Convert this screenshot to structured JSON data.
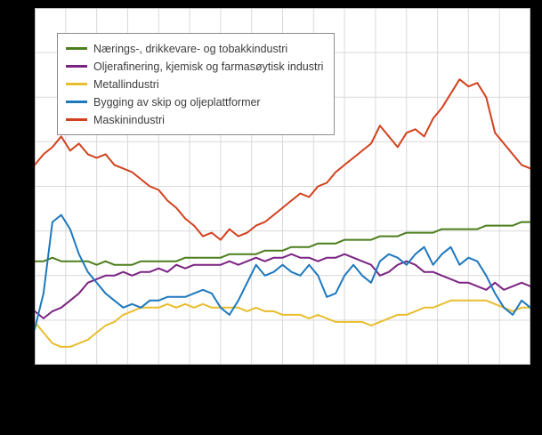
{
  "page": {
    "background": "#000000"
  },
  "chart_data": {
    "type": "line",
    "title": "",
    "xlabel": "",
    "ylabel": "",
    "axis_tick_labels_visible": false,
    "plot_background": "#ffffff",
    "grid": {
      "on": true,
      "horizontal_lines": 9,
      "vertical_lines": 17,
      "color": "#d9d9d9",
      "border_color": "#bfbfbf"
    },
    "ylim": [
      70,
      170
    ],
    "legend_position": "top-left",
    "series": [
      {
        "name": "Nærings-, drikkevare- og tobakkindustri",
        "color": "#4c7e1c",
        "values": [
          99,
          99,
          100,
          99,
          99,
          99,
          99,
          98,
          99,
          98,
          98,
          98,
          99,
          99,
          99,
          99,
          99,
          100,
          100,
          100,
          100,
          100,
          101,
          101,
          101,
          101,
          102,
          102,
          102,
          103,
          103,
          103,
          104,
          104,
          104,
          105,
          105,
          105,
          105,
          106,
          106,
          106,
          107,
          107,
          107,
          107,
          108,
          108,
          108,
          108,
          108,
          109,
          109,
          109,
          109,
          110,
          110
        ]
      },
      {
        "name": "Oljerafinering, kjemisk og farmasøytisk industri",
        "color": "#7b2382",
        "values": [
          85,
          83,
          85,
          86,
          88,
          90,
          93,
          94,
          95,
          95,
          96,
          95,
          96,
          96,
          97,
          96,
          98,
          97,
          98,
          98,
          98,
          98,
          99,
          98,
          99,
          100,
          99,
          100,
          100,
          101,
          100,
          100,
          99,
          100,
          100,
          101,
          100,
          99,
          98,
          95,
          96,
          98,
          99,
          98,
          96,
          96,
          95,
          94,
          93,
          93,
          92,
          91,
          93,
          91,
          92,
          93,
          92
        ]
      },
      {
        "name": "Metallindustri",
        "color": "#e9bd2e",
        "values": [
          82,
          79,
          76,
          75,
          75,
          76,
          77,
          79,
          81,
          82,
          84,
          85,
          86,
          86,
          86,
          87,
          86,
          87,
          86,
          87,
          86,
          86,
          86,
          86,
          85,
          86,
          85,
          85,
          84,
          84,
          84,
          83,
          84,
          83,
          82,
          82,
          82,
          82,
          81,
          82,
          83,
          84,
          84,
          85,
          86,
          86,
          87,
          88,
          88,
          88,
          88,
          88,
          87,
          86,
          85,
          86,
          86
        ]
      },
      {
        "name": "Bygging av skip og oljeplattformer",
        "color": "#1e78be",
        "values": [
          80,
          90,
          110,
          112,
          108,
          101,
          96,
          93,
          90,
          88,
          86,
          87,
          86,
          88,
          88,
          89,
          89,
          89,
          90,
          91,
          90,
          86,
          84,
          88,
          93,
          98,
          95,
          96,
          98,
          96,
          95,
          98,
          95,
          89,
          90,
          95,
          98,
          95,
          93,
          99,
          101,
          100,
          98,
          101,
          103,
          98,
          101,
          103,
          98,
          100,
          99,
          95,
          90,
          86,
          84,
          88,
          86
        ]
      },
      {
        "name": "Maskinindustri",
        "color": "#d2401d",
        "values": [
          126,
          129,
          131,
          134,
          130,
          132,
          129,
          128,
          129,
          126,
          125,
          124,
          122,
          120,
          119,
          116,
          114,
          111,
          109,
          106,
          107,
          105,
          108,
          106,
          107,
          109,
          110,
          112,
          114,
          116,
          118,
          117,
          120,
          121,
          124,
          126,
          128,
          130,
          132,
          137,
          134,
          131,
          135,
          136,
          134,
          139,
          142,
          146,
          150,
          148,
          149,
          145,
          135,
          132,
          129,
          126,
          125
        ]
      }
    ]
  }
}
